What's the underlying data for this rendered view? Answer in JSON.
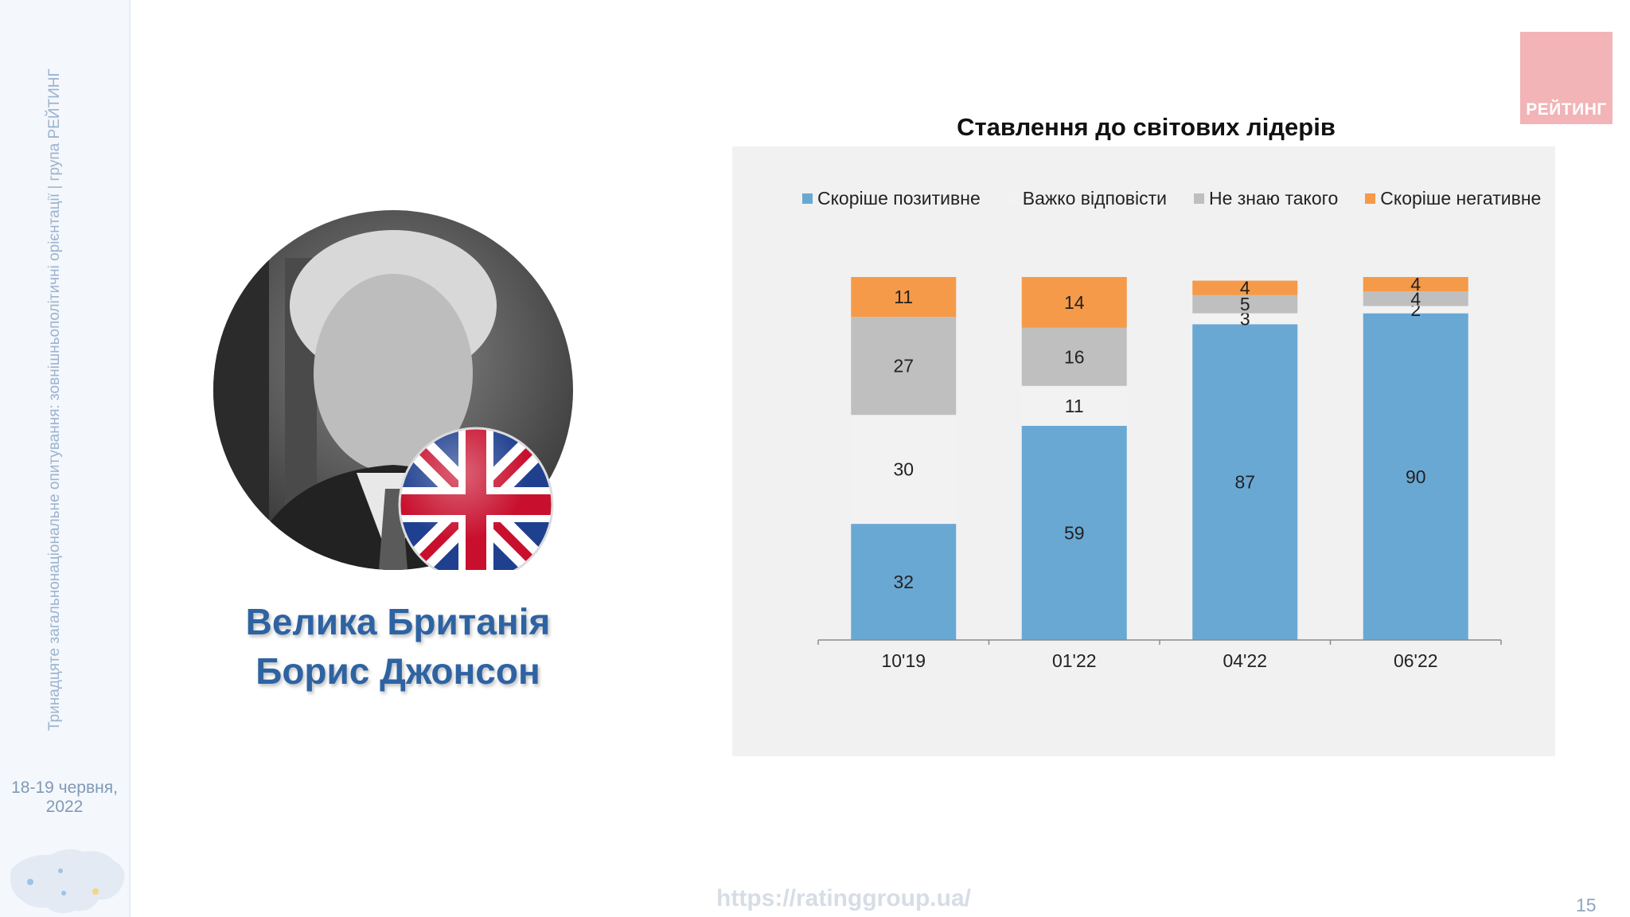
{
  "sidebar": {
    "vertical_text": "Тринадцяте загальнонаціональне опитування: зовнішньополітичні орієнтації | група РЕЙТИНГ",
    "date_line1": "18-19 червня,",
    "date_line2": "2022"
  },
  "logo": {
    "text": "РЕЙТИНГ"
  },
  "caption": {
    "line1": "Велика Британія",
    "line2": "Борис Джонсон"
  },
  "footer": {
    "url": "https://ratinggroup.ua/",
    "page_number": "15"
  },
  "chart_data": {
    "type": "bar",
    "stacked": true,
    "title": "Ставлення до світових лідерів",
    "categories": [
      "10'19",
      "01'22",
      "04'22",
      "06'22"
    ],
    "ylim": [
      0,
      100
    ],
    "grid": false,
    "legend_position": "top",
    "series": [
      {
        "name": "Скоріше позитивне",
        "color": "#6aa8d4",
        "values": [
          32,
          59,
          87,
          90
        ]
      },
      {
        "name": "Важко відповісти",
        "color": "#f2f2f2",
        "values": [
          30,
          11,
          3,
          2
        ]
      },
      {
        "name": "Не знаю такого",
        "color": "#bfbfbf",
        "values": [
          27,
          16,
          5,
          4
        ]
      },
      {
        "name": "Скоріше негативне",
        "color": "#f59a48",
        "values": [
          11,
          14,
          4,
          4
        ]
      }
    ]
  }
}
